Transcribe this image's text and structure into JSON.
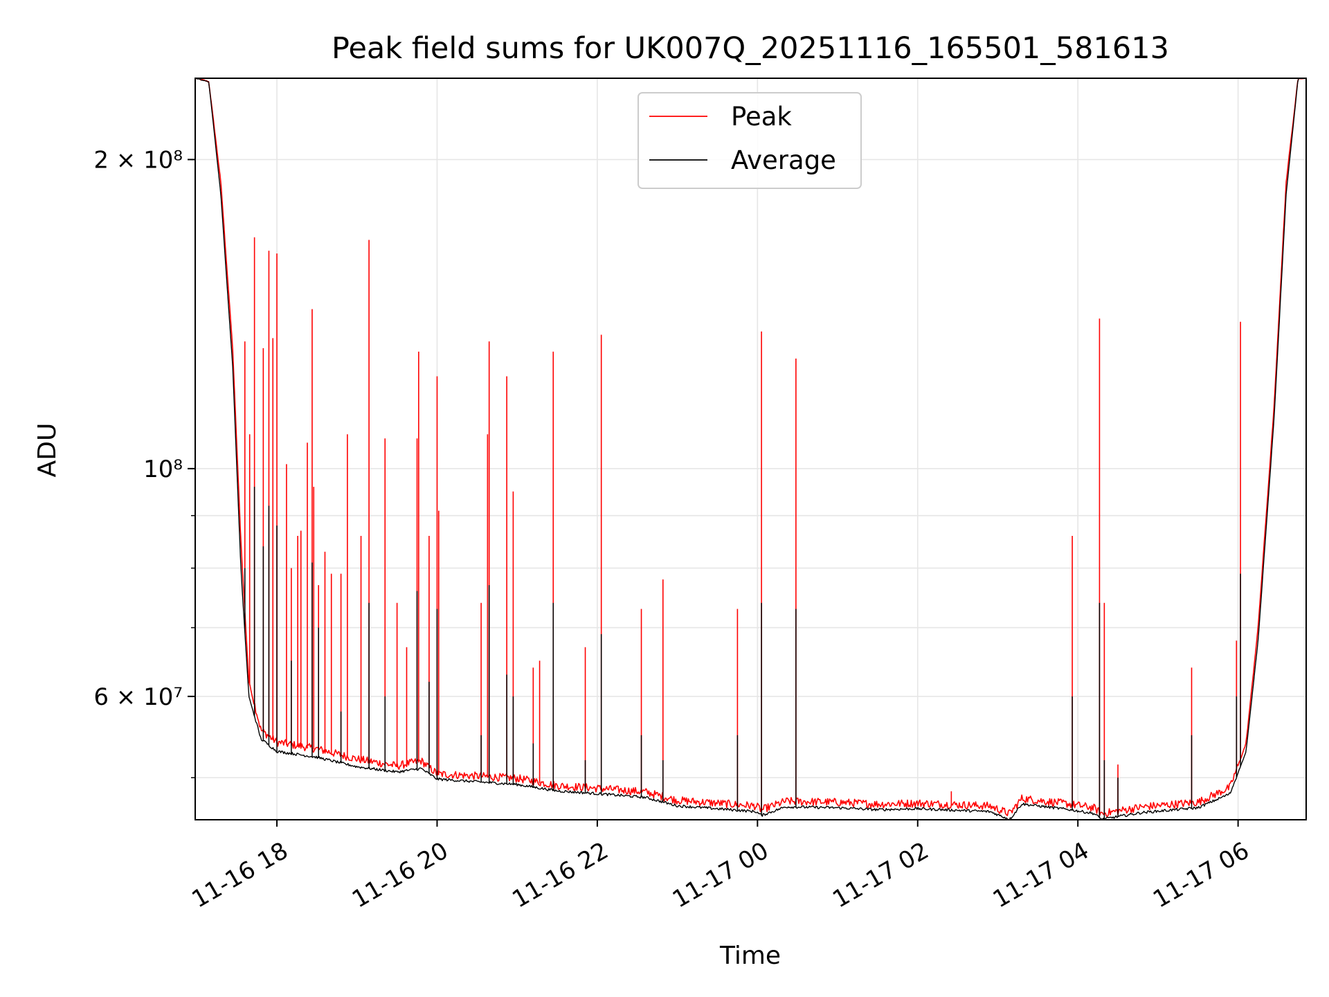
{
  "chart_data": {
    "type": "line",
    "title": "Peak field sums for UK007Q_20251116_165501_581613",
    "xlabel": "Time",
    "ylabel": "ADU",
    "y_scale": "log",
    "ylim": [
      45500000,
      240000000
    ],
    "xlim_hours_from_2025_11_16_00": [
      16.98,
      30.85
    ],
    "grid": true,
    "legend_position": "upper center",
    "x_ticks": [
      {
        "label": "11-16 18",
        "hour": 18
      },
      {
        "label": "11-16 20",
        "hour": 20
      },
      {
        "label": "11-16 22",
        "hour": 22
      },
      {
        "label": "11-17 00",
        "hour": 24
      },
      {
        "label": "11-17 02",
        "hour": 26
      },
      {
        "label": "11-17 04",
        "hour": 28
      },
      {
        "label": "11-17 06",
        "hour": 30
      }
    ],
    "y_ticks": [
      {
        "label": "2 × 10⁸",
        "value": 200000000
      },
      {
        "label": "10⁸",
        "value": 100000000
      },
      {
        "label": "6 × 10⁷",
        "value": 60000000
      }
    ],
    "y_minor_gridlines": [
      50000000,
      60000000,
      70000000,
      80000000,
      90000000,
      100000000,
      200000000
    ],
    "series": [
      {
        "name": "Peak",
        "color": "#ff0000",
        "baseline": [
          [
            16.98,
            240000000
          ],
          [
            17.15,
            238000000
          ],
          [
            17.3,
            190000000
          ],
          [
            17.45,
            130000000
          ],
          [
            17.55,
            85000000
          ],
          [
            17.65,
            62000000
          ],
          [
            17.8,
            55500000
          ],
          [
            18.0,
            54000000
          ],
          [
            18.5,
            53200000
          ],
          [
            19.0,
            52000000
          ],
          [
            19.5,
            51200000
          ],
          [
            19.8,
            51800000
          ],
          [
            20.0,
            50300000
          ],
          [
            21.0,
            49800000
          ],
          [
            21.5,
            49000000
          ],
          [
            22.0,
            48700000
          ],
          [
            22.6,
            48300000
          ],
          [
            23.0,
            47400000
          ],
          [
            23.5,
            47100000
          ],
          [
            23.98,
            46800000
          ],
          [
            24.05,
            46400000
          ],
          [
            24.35,
            47300000
          ],
          [
            25.0,
            47200000
          ],
          [
            25.5,
            47000000
          ],
          [
            26.0,
            47100000
          ],
          [
            26.9,
            46800000
          ],
          [
            27.15,
            46000000
          ],
          [
            27.3,
            47600000
          ],
          [
            27.9,
            47000000
          ],
          [
            28.2,
            46600000
          ],
          [
            28.3,
            46000000
          ],
          [
            28.8,
            46700000
          ],
          [
            29.5,
            47200000
          ],
          [
            29.9,
            48800000
          ],
          [
            30.1,
            54000000
          ],
          [
            30.25,
            70000000
          ],
          [
            30.45,
            115000000
          ],
          [
            30.6,
            190000000
          ],
          [
            30.75,
            240000000
          ],
          [
            30.85,
            240000000
          ]
        ],
        "spikes": [
          [
            17.6,
            133000000
          ],
          [
            17.66,
            108000000
          ],
          [
            17.72,
            168000000
          ],
          [
            17.83,
            131000000
          ],
          [
            17.9,
            163000000
          ],
          [
            17.95,
            134000000
          ],
          [
            18.0,
            162000000
          ],
          [
            18.12,
            101000000
          ],
          [
            18.18,
            80000000
          ],
          [
            18.26,
            86000000
          ],
          [
            18.3,
            87000000
          ],
          [
            18.38,
            106000000
          ],
          [
            18.44,
            143000000
          ],
          [
            18.46,
            96000000
          ],
          [
            18.52,
            77000000
          ],
          [
            18.6,
            83000000
          ],
          [
            18.68,
            79000000
          ],
          [
            18.8,
            79000000
          ],
          [
            18.88,
            108000000
          ],
          [
            19.05,
            86000000
          ],
          [
            19.15,
            167000000
          ],
          [
            19.35,
            107000000
          ],
          [
            19.5,
            74000000
          ],
          [
            19.62,
            67000000
          ],
          [
            19.75,
            107000000
          ],
          [
            19.77,
            130000000
          ],
          [
            19.9,
            86000000
          ],
          [
            20.0,
            123000000
          ],
          [
            20.02,
            91000000
          ],
          [
            20.55,
            74000000
          ],
          [
            20.63,
            108000000
          ],
          [
            20.65,
            133000000
          ],
          [
            20.87,
            123000000
          ],
          [
            20.95,
            95000000
          ],
          [
            21.2,
            64000000
          ],
          [
            21.28,
            65000000
          ],
          [
            21.45,
            130000000
          ],
          [
            21.85,
            67000000
          ],
          [
            22.05,
            135000000
          ],
          [
            22.55,
            73000000
          ],
          [
            22.82,
            78000000
          ],
          [
            23.75,
            73000000
          ],
          [
            24.05,
            136000000
          ],
          [
            24.48,
            128000000
          ],
          [
            26.42,
            48500000
          ],
          [
            27.93,
            86000000
          ],
          [
            28.27,
            140000000
          ],
          [
            28.33,
            74000000
          ],
          [
            28.5,
            51500000
          ],
          [
            29.42,
            64000000
          ],
          [
            29.98,
            68000000
          ],
          [
            30.03,
            139000000
          ]
        ]
      },
      {
        "name": "Average",
        "color": "#000000",
        "baseline": [
          [
            16.98,
            240000000
          ],
          [
            17.15,
            238000000
          ],
          [
            17.3,
            185000000
          ],
          [
            17.45,
            125000000
          ],
          [
            17.55,
            80000000
          ],
          [
            17.65,
            60000000
          ],
          [
            17.8,
            54500000
          ],
          [
            18.0,
            53000000
          ],
          [
            18.5,
            52300000
          ],
          [
            19.0,
            51200000
          ],
          [
            19.5,
            50600000
          ],
          [
            19.8,
            51000000
          ],
          [
            20.0,
            49800000
          ],
          [
            21.0,
            49200000
          ],
          [
            21.5,
            48500000
          ],
          [
            22.0,
            48200000
          ],
          [
            22.6,
            47800000
          ],
          [
            23.0,
            46900000
          ],
          [
            23.5,
            46600000
          ],
          [
            23.98,
            46300000
          ],
          [
            24.05,
            45900000
          ],
          [
            24.35,
            46800000
          ],
          [
            25.0,
            46700000
          ],
          [
            25.5,
            46500000
          ],
          [
            26.0,
            46600000
          ],
          [
            26.9,
            46300000
          ],
          [
            27.15,
            45500000
          ],
          [
            27.3,
            47100000
          ],
          [
            27.9,
            46500000
          ],
          [
            28.2,
            46100000
          ],
          [
            28.3,
            45500000
          ],
          [
            28.8,
            46200000
          ],
          [
            29.5,
            46700000
          ],
          [
            29.9,
            48200000
          ],
          [
            30.1,
            53000000
          ],
          [
            30.25,
            68000000
          ],
          [
            30.45,
            112000000
          ],
          [
            30.6,
            185000000
          ],
          [
            30.75,
            240000000
          ],
          [
            30.85,
            240000000
          ]
        ],
        "spikes": [
          [
            17.6,
            80000000
          ],
          [
            17.72,
            96000000
          ],
          [
            17.83,
            84000000
          ],
          [
            17.9,
            92000000
          ],
          [
            18.0,
            88000000
          ],
          [
            18.18,
            65000000
          ],
          [
            18.44,
            81000000
          ],
          [
            18.52,
            70000000
          ],
          [
            18.8,
            58000000
          ],
          [
            19.15,
            74000000
          ],
          [
            19.35,
            60000000
          ],
          [
            19.75,
            76000000
          ],
          [
            19.9,
            62000000
          ],
          [
            20.0,
            73000000
          ],
          [
            20.55,
            55000000
          ],
          [
            20.65,
            77000000
          ],
          [
            20.87,
            63000000
          ],
          [
            20.95,
            60000000
          ],
          [
            21.2,
            54000000
          ],
          [
            21.45,
            74000000
          ],
          [
            21.85,
            52000000
          ],
          [
            22.05,
            69000000
          ],
          [
            22.55,
            55000000
          ],
          [
            22.82,
            52000000
          ],
          [
            23.75,
            55000000
          ],
          [
            24.05,
            74000000
          ],
          [
            24.48,
            73000000
          ],
          [
            27.93,
            60000000
          ],
          [
            28.27,
            74000000
          ],
          [
            28.33,
            52000000
          ],
          [
            28.5,
            50000000
          ],
          [
            29.42,
            55000000
          ],
          [
            29.98,
            60000000
          ],
          [
            30.03,
            79000000
          ]
        ]
      }
    ]
  }
}
